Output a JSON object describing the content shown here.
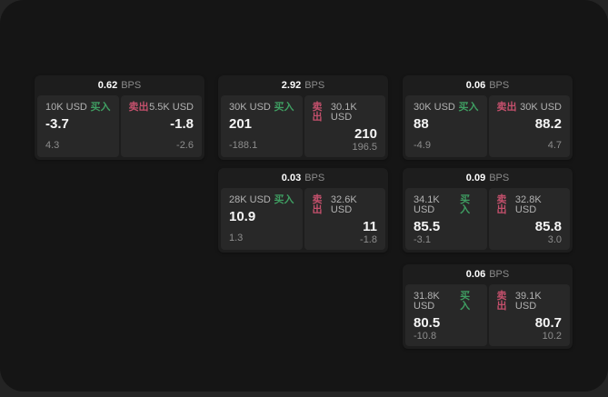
{
  "labels": {
    "bps_suffix": "BPS",
    "buy": "买入",
    "sell": "卖出"
  },
  "colors": {
    "buy": "#3f9e62",
    "sell": "#c4506c",
    "page_background": "#242424",
    "window_background": "#151515",
    "card_background": "#1d1d1d",
    "panel_background": "#282828"
  },
  "cards": [
    {
      "bps": "0.62",
      "buy": {
        "amount": "10K USD",
        "value": "-3.7",
        "sub": "4.3"
      },
      "sell": {
        "amount": "5.5K USD",
        "value": "-1.8",
        "sub": "-2.6"
      }
    },
    {
      "bps": "2.92",
      "buy": {
        "amount": "30K USD",
        "value": "201",
        "sub": "-188.1"
      },
      "sell": {
        "amount": "30.1K USD",
        "value": "210",
        "sub": "196.5"
      }
    },
    {
      "bps": "0.06",
      "buy": {
        "amount": "30K USD",
        "value": "88",
        "sub": "-4.9"
      },
      "sell": {
        "amount": "30K USD",
        "value": "88.2",
        "sub": "4.7"
      }
    },
    {
      "bps": "0.03",
      "buy": {
        "amount": "28K USD",
        "value": "10.9",
        "sub": "1.3"
      },
      "sell": {
        "amount": "32.6K USD",
        "value": "11",
        "sub": "-1.8"
      }
    },
    {
      "bps": "0.09",
      "buy": {
        "amount": "34.1K USD",
        "value": "85.5",
        "sub": "-3.1"
      },
      "sell": {
        "amount": "32.8K USD",
        "value": "85.8",
        "sub": "3.0"
      }
    },
    {
      "bps": "0.06",
      "buy": {
        "amount": "31.8K USD",
        "value": "80.5",
        "sub": "-10.8"
      },
      "sell": {
        "amount": "39.1K USD",
        "value": "80.7",
        "sub": "10.2"
      }
    }
  ]
}
